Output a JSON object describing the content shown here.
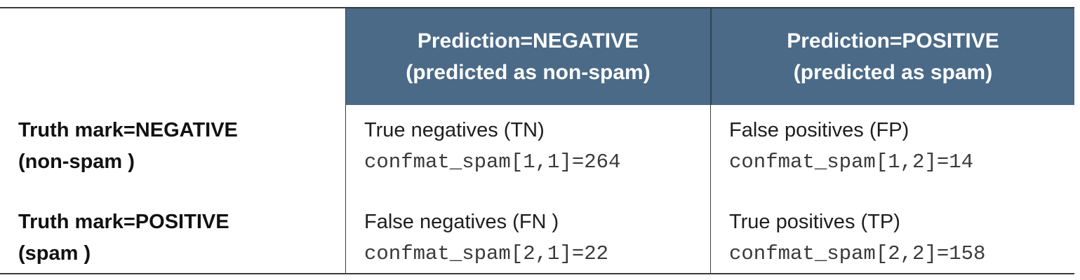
{
  "table": {
    "header": {
      "col1_line1": "Prediction=NEGATIVE",
      "col1_line2": "(predicted as non-spam)",
      "col2_line1": "Prediction=POSITIVE",
      "col2_line2": "(predicted as spam)"
    },
    "rows": [
      {
        "label_line1": "Truth mark=NEGATIVE",
        "label_line2": "(non-spam )",
        "cells": [
          {
            "label": "True negatives (TN)",
            "code": "confmat_spam[1,1]=264"
          },
          {
            "label": "False positives (FP)",
            "code": "confmat_spam[1,2]=14"
          }
        ]
      },
      {
        "label_line1": "Truth mark=POSITIVE",
        "label_line2": "(spam )",
        "cells": [
          {
            "label": "False negatives (FN )",
            "code": "confmat_spam[2,1]=22"
          },
          {
            "label": "True positives (TP)",
            "code": "confmat_spam[2,2]=158"
          }
        ]
      }
    ]
  },
  "colors": {
    "header_bg": "#4a6a87",
    "header_text": "#ffffff",
    "rule": "#3a3a3a"
  }
}
